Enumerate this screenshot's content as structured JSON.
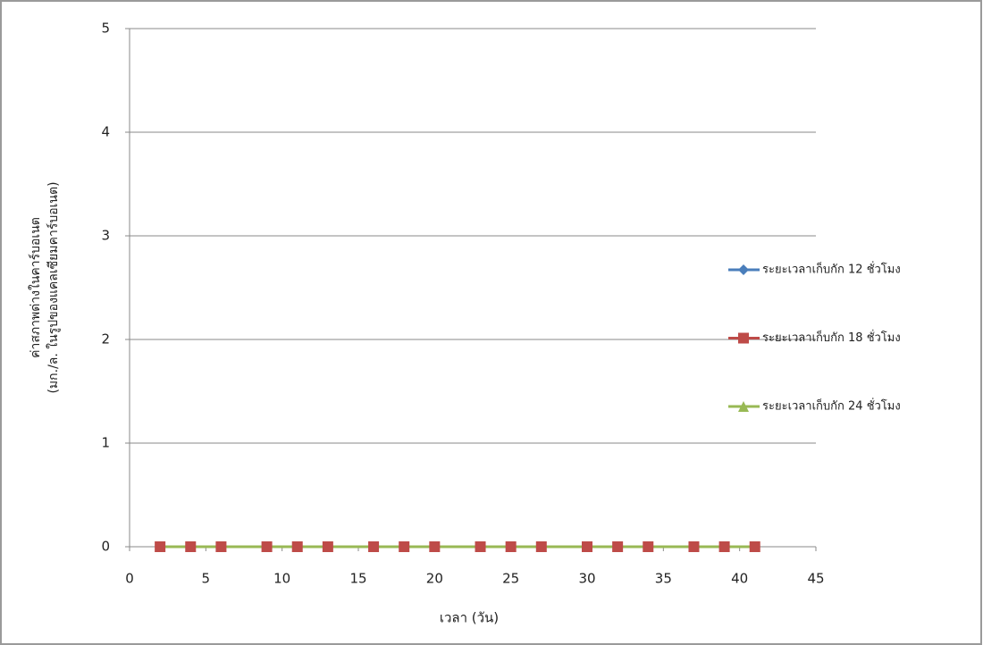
{
  "chart_data": {
    "type": "line",
    "xlabel": "เวลา (วัน)",
    "ylabel": [
      "ค่าสภาพด่างในคาร์บอเนต",
      "(มก./ล. ในรูปของแคลเซียมคาร์บอเนต)"
    ],
    "x": [
      2,
      4,
      6,
      9,
      11,
      13,
      16,
      18,
      20,
      23,
      25,
      27,
      30,
      32,
      34,
      37,
      39,
      41
    ],
    "series": [
      {
        "name": "ระยะเวลาเก็บกัก 12 ชั่วโมง",
        "color": "#4a7ebb",
        "marker": "diamond",
        "values": [
          0,
          0,
          0,
          0,
          0,
          0,
          0,
          0,
          0,
          0,
          0,
          0,
          0,
          0,
          0,
          0,
          0,
          0
        ]
      },
      {
        "name": "ระยะเวลาเก็บกัก 18 ชั่วโมง",
        "color": "#be4b48",
        "marker": "square",
        "values": [
          0,
          0,
          0,
          0,
          0,
          0,
          0,
          0,
          0,
          0,
          0,
          0,
          0,
          0,
          0,
          0,
          0,
          0
        ]
      },
      {
        "name": "ระยะเวลาเก็บกัก 24 ชั่วโมง",
        "color": "#98b954",
        "marker": "triangle",
        "values": [
          0,
          0,
          0,
          0,
          0,
          0,
          0,
          0,
          0,
          0,
          0,
          0,
          0,
          0,
          0,
          0,
          0,
          0
        ]
      }
    ],
    "xlim": [
      0,
      45
    ],
    "xticks": [
      0,
      5,
      10,
      15,
      20,
      25,
      30,
      35,
      40,
      45
    ],
    "ylim": [
      0,
      5
    ],
    "yticks": [
      0,
      1,
      2,
      3,
      4,
      5
    ],
    "grid": true,
    "legend": "right"
  }
}
